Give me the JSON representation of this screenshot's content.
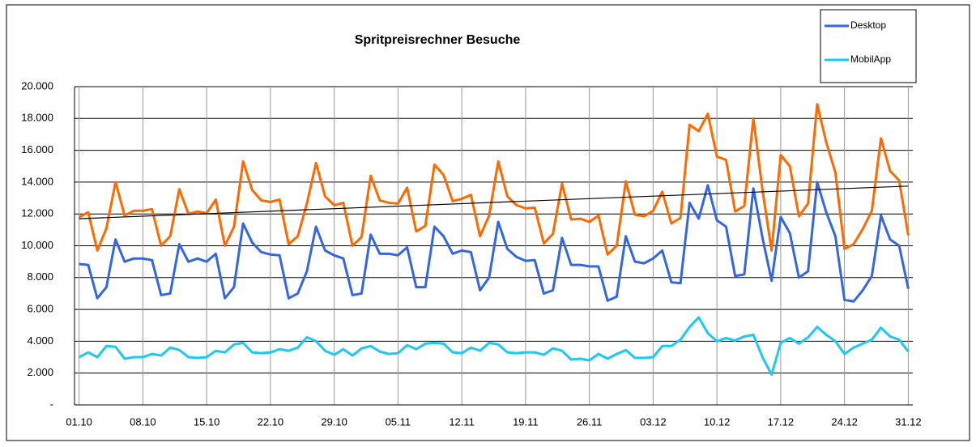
{
  "chart_data": {
    "type": "line",
    "title": "Spritpreisrechner Besuche",
    "categories": [
      "01.10",
      null,
      null,
      null,
      null,
      null,
      null,
      "08.10",
      null,
      null,
      null,
      null,
      null,
      null,
      "15.10",
      null,
      null,
      null,
      null,
      null,
      null,
      "22.10",
      null,
      null,
      null,
      null,
      null,
      null,
      "29.10",
      null,
      null,
      null,
      null,
      null,
      null,
      "05.11",
      null,
      null,
      null,
      null,
      null,
      null,
      "12.11",
      null,
      null,
      null,
      null,
      null,
      null,
      "19.11",
      null,
      null,
      null,
      null,
      null,
      null,
      "26.11",
      null,
      null,
      null,
      null,
      null,
      null,
      "03.12",
      null,
      null,
      null,
      null,
      null,
      null,
      "10.12",
      null,
      null,
      null,
      null,
      null,
      null,
      "17.12",
      null,
      null,
      null,
      null,
      null,
      null,
      "24.12",
      null,
      null,
      null,
      null,
      null,
      null,
      "31.12"
    ],
    "series": [
      {
        "color": "#ff6a00",
        "values": [
          11800,
          12100,
          9700,
          11100,
          14000,
          11900,
          12200,
          12200,
          12300,
          10000,
          10600,
          13550,
          12000,
          12150,
          12050,
          12900,
          10000,
          11200,
          15300,
          13500,
          12850,
          12750,
          12900,
          10100,
          10600,
          12650,
          15200,
          13100,
          12550,
          12700,
          10000,
          10550,
          14400,
          12850,
          12700,
          12650,
          13650,
          10900,
          11250,
          15100,
          14450,
          12800,
          12950,
          13200,
          10600,
          11900,
          15300,
          13100,
          12550,
          12350,
          12400,
          10150,
          10750,
          13900,
          11650,
          11700,
          11500,
          11900,
          9450,
          10000,
          14050,
          11950,
          11850,
          12200,
          13400,
          11400,
          11750,
          17600,
          17200,
          18300,
          15600,
          15400,
          12150,
          12500,
          18000,
          13500,
          9700,
          15700,
          15000,
          11850,
          12650,
          18900,
          16500,
          14600,
          9800,
          10100,
          11050,
          12200,
          16750,
          14700,
          14100,
          10650
        ]
      },
      {
        "name": "Desktop",
        "color": "#3366e0",
        "values": [
          8850,
          8800,
          6700,
          7400,
          10400,
          9000,
          9200,
          9200,
          9100,
          6900,
          7000,
          10100,
          9000,
          9200,
          9000,
          9500,
          6700,
          7400,
          11400,
          10200,
          9600,
          9450,
          9400,
          6700,
          7000,
          8400,
          11200,
          9700,
          9400,
          9200,
          6900,
          7000,
          10700,
          9500,
          9500,
          9400,
          9900,
          7400,
          7400,
          11200,
          10600,
          9500,
          9700,
          9600,
          7200,
          8000,
          11500,
          9800,
          9300,
          9050,
          9100,
          7000,
          7200,
          10500,
          8800,
          8800,
          8700,
          8700,
          6550,
          6800,
          10600,
          9000,
          8900,
          9200,
          9700,
          7700,
          7650,
          12700,
          11700,
          13800,
          11600,
          11200,
          8100,
          8200,
          13600,
          10500,
          7800,
          11800,
          10800,
          8000,
          8400,
          14000,
          12100,
          10600,
          6600,
          6500,
          7200,
          8100,
          11900,
          10400,
          10000,
          7300
        ]
      },
      {
        "name": "MobilApp",
        "color": "#1ec8f0",
        "values": [
          3000,
          3300,
          3000,
          3700,
          3650,
          2900,
          3000,
          3000,
          3200,
          3100,
          3600,
          3450,
          3000,
          2950,
          3000,
          3400,
          3300,
          3800,
          3900,
          3300,
          3250,
          3300,
          3500,
          3400,
          3600,
          4250,
          4000,
          3400,
          3150,
          3500,
          3100,
          3550,
          3700,
          3350,
          3200,
          3250,
          3750,
          3500,
          3850,
          3900,
          3850,
          3300,
          3250,
          3600,
          3400,
          3900,
          3800,
          3300,
          3250,
          3300,
          3300,
          3150,
          3550,
          3400,
          2850,
          2900,
          2800,
          3200,
          2900,
          3200,
          3450,
          2950,
          2950,
          3000,
          3700,
          3700,
          4100,
          4900,
          5500,
          4500,
          4000,
          4200,
          4050,
          4300,
          4400,
          3000,
          1900,
          3900,
          4200,
          3850,
          4250,
          4900,
          4400,
          4000,
          3200,
          3600,
          3850,
          4100,
          4850,
          4300,
          4100,
          3350
        ]
      }
    ],
    "trendline": {
      "color": "#000000",
      "values": [
        11700,
        13750
      ]
    },
    "ylim": [
      0,
      20000
    ],
    "yticks": [
      {
        "value": 0,
        "label": "-"
      },
      {
        "value": 2000,
        "label": "2.000"
      },
      {
        "value": 4000,
        "label": "4.000"
      },
      {
        "value": 6000,
        "label": "6.000"
      },
      {
        "value": 8000,
        "label": "8.000"
      },
      {
        "value": 10000,
        "label": "10.000"
      },
      {
        "value": 12000,
        "label": "12.000"
      },
      {
        "value": 14000,
        "label": "14.000"
      },
      {
        "value": 16000,
        "label": "16.000"
      },
      {
        "value": 18000,
        "label": "18.000"
      },
      {
        "value": 20000,
        "label": "20.000"
      }
    ],
    "grid": true,
    "legend": "top-right"
  }
}
